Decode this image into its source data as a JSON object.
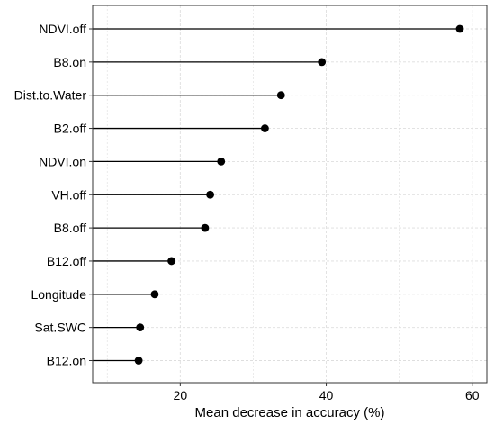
{
  "chart_data": {
    "type": "lollipop",
    "title": "",
    "xlabel": "Mean decrease in accuracy (%)",
    "ylabel": "",
    "xlim": [
      8,
      62
    ],
    "x_ticks": [
      20,
      40,
      60
    ],
    "grid": true,
    "legend": "none",
    "categories": [
      "NDVI.off",
      "B8.on",
      "Dist.to.Water",
      "B2.off",
      "NDVI.on",
      "VH.off",
      "B8.off",
      "B12.off",
      "Longitude",
      "Sat.SWC",
      "B12.on"
    ],
    "values": [
      58.3,
      39.4,
      33.8,
      31.6,
      25.6,
      24.1,
      23.4,
      18.8,
      16.5,
      14.5,
      14.3
    ],
    "colors": {
      "point": "#000000",
      "stem": "#000000",
      "grid": "#dedede",
      "panel_border": "#333333"
    }
  }
}
